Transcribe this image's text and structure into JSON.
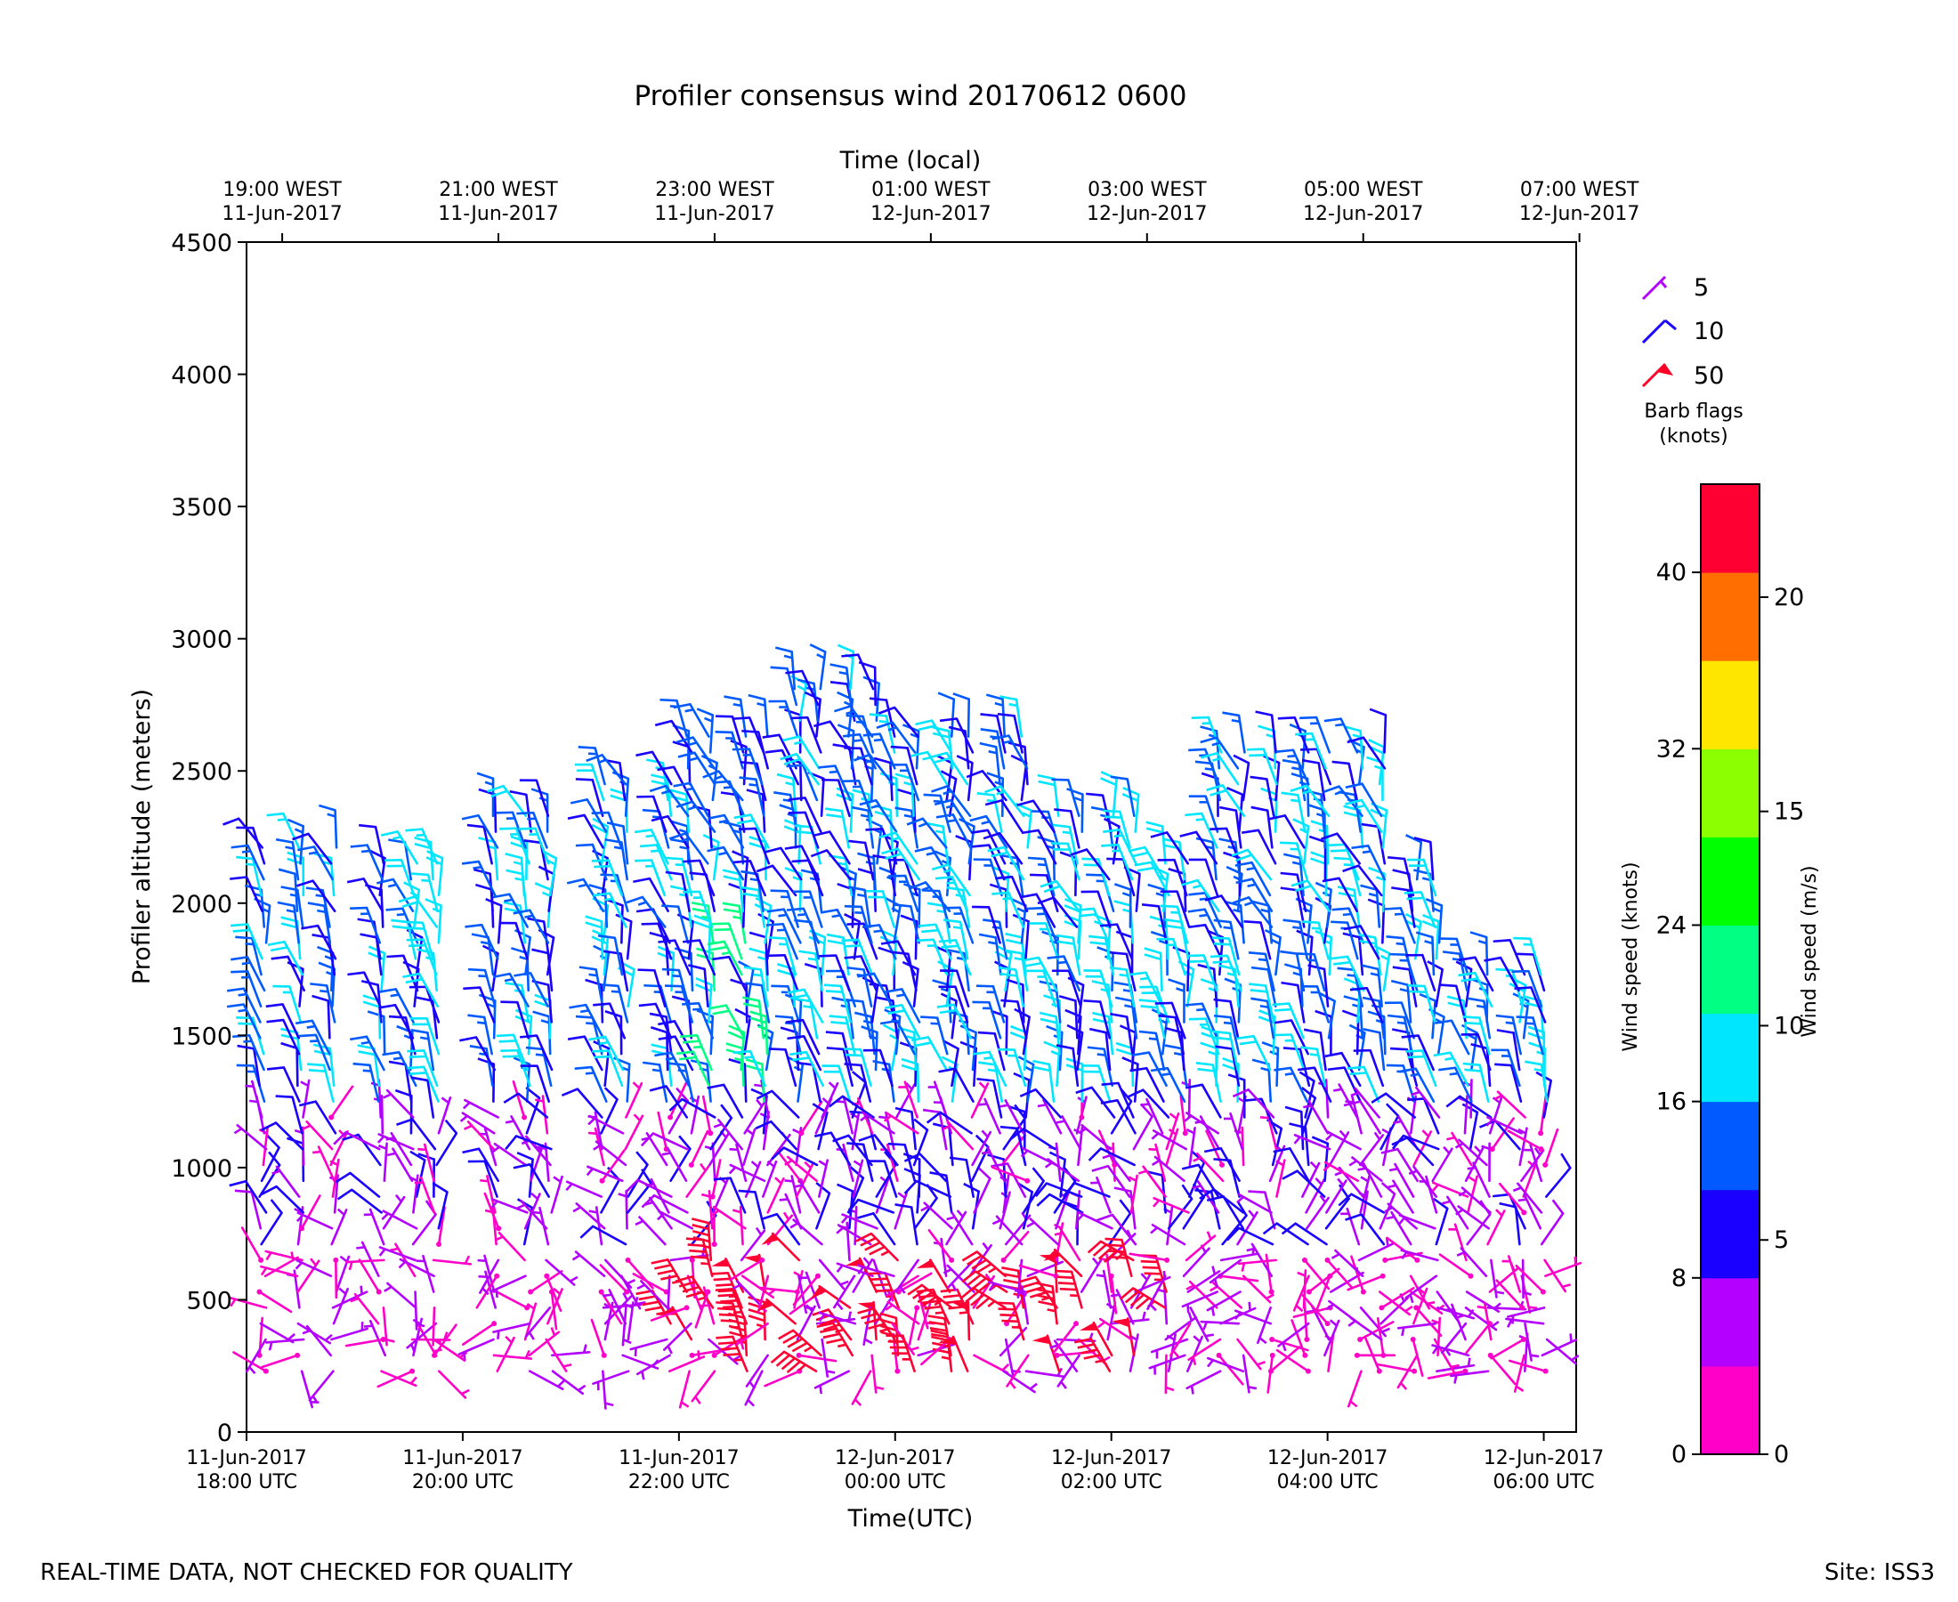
{
  "title": "Profiler consensus wind 20170612 0600",
  "top_axis_label": "Time (local)",
  "top_ticks": [
    [
      "19:00 WEST",
      "11-Jun-2017"
    ],
    [
      "21:00 WEST",
      "11-Jun-2017"
    ],
    [
      "23:00 WEST",
      "11-Jun-2017"
    ],
    [
      "01:00 WEST",
      "12-Jun-2017"
    ],
    [
      "03:00 WEST",
      "12-Jun-2017"
    ],
    [
      "05:00 WEST",
      "12-Jun-2017"
    ],
    [
      "07:00 WEST",
      "12-Jun-2017"
    ]
  ],
  "bottom_axis_label": "Time(UTC)",
  "bottom_ticks": [
    [
      "11-Jun-2017",
      "18:00 UTC"
    ],
    [
      "11-Jun-2017",
      "20:00 UTC"
    ],
    [
      "11-Jun-2017",
      "22:00 UTC"
    ],
    [
      "12-Jun-2017",
      "00:00 UTC"
    ],
    [
      "12-Jun-2017",
      "02:00 UTC"
    ],
    [
      "12-Jun-2017",
      "04:00 UTC"
    ],
    [
      "12-Jun-2017",
      "06:00 UTC"
    ]
  ],
  "y_axis_label": "Profiler altitude (meters)",
  "y_ticks": [
    "0",
    "500",
    "1000",
    "1500",
    "2000",
    "2500",
    "3000",
    "3500",
    "4000",
    "4500"
  ],
  "legend": {
    "items": [
      {
        "label": "5",
        "color": "#b400ff"
      },
      {
        "label": "10",
        "color": "#1a00ff"
      },
      {
        "label": "50",
        "color": "#ff0026"
      }
    ],
    "caption_line1": "Barb flags",
    "caption_line2": "(knots)"
  },
  "colorbar": {
    "colors": [
      "#ff00c8",
      "#b400ff",
      "#1a00ff",
      "#005aff",
      "#00e6ff",
      "#00ff82",
      "#00ff00",
      "#8cff00",
      "#ffe600",
      "#ff6e00",
      "#ff0032"
    ],
    "knots_ticks": [
      "0",
      "8",
      "16",
      "24",
      "32",
      "40"
    ],
    "ms_ticks": [
      "0",
      "5",
      "10",
      "15",
      "20"
    ],
    "label_knots": "Wind speed (knots)",
    "label_ms": "Wind speed (m/s)"
  },
  "footer_left": "REAL-TIME DATA, NOT CHECKED FOR QUALITY",
  "footer_right": "Site: ISS3",
  "chart_data": {
    "type": "scatter",
    "description_units": "x: hours UTC since 11-Jun-2017 18:00; y: altitude m; barbs show wind speed (knots) and direction (deg)",
    "xlim": [
      0,
      12.3
    ],
    "ylim": [
      0,
      4500
    ],
    "grid": false,
    "legend_position": "right",
    "profile_times": [
      0.15,
      0.5,
      0.8,
      1.25,
      1.55,
      1.75,
      2.3,
      2.6,
      2.8,
      3.3,
      3.5,
      3.9,
      4.1,
      4.3,
      4.6,
      4.8,
      5.1,
      5.3,
      5.6,
      5.8,
      6.0,
      6.2,
      6.5,
      6.7,
      7.0,
      7.2,
      7.5,
      7.7,
      8.0,
      8.2,
      8.5,
      8.7,
      9.0,
      9.2,
      9.5,
      9.8,
      10.0,
      10.3,
      10.5,
      10.8,
      11.0,
      11.3,
      11.5,
      11.8,
      12.0
    ],
    "levels": [
      {
        "alt_range": [
          200,
          700
        ],
        "typical_speed_kt": [
          2,
          44
        ],
        "note": "mixed light pink/purple barbs with strong red barbs near 22:00-02:30 UTC"
      },
      {
        "alt_range": [
          700,
          1300
        ],
        "typical_speed_kt": [
          2,
          12
        ],
        "note": "mostly magenta/purple/blue"
      },
      {
        "alt_range": [
          1300,
          2600
        ],
        "typical_speed_kt": [
          6,
          22
        ],
        "note": "blue and cyan barbs, green near 22:00 UTC"
      },
      {
        "alt_range": [
          2200,
          2850
        ],
        "typical_speed_kt": [
          8,
          18
        ],
        "note": "upper gates reach ~2850 m near 23:30 UTC"
      }
    ]
  }
}
